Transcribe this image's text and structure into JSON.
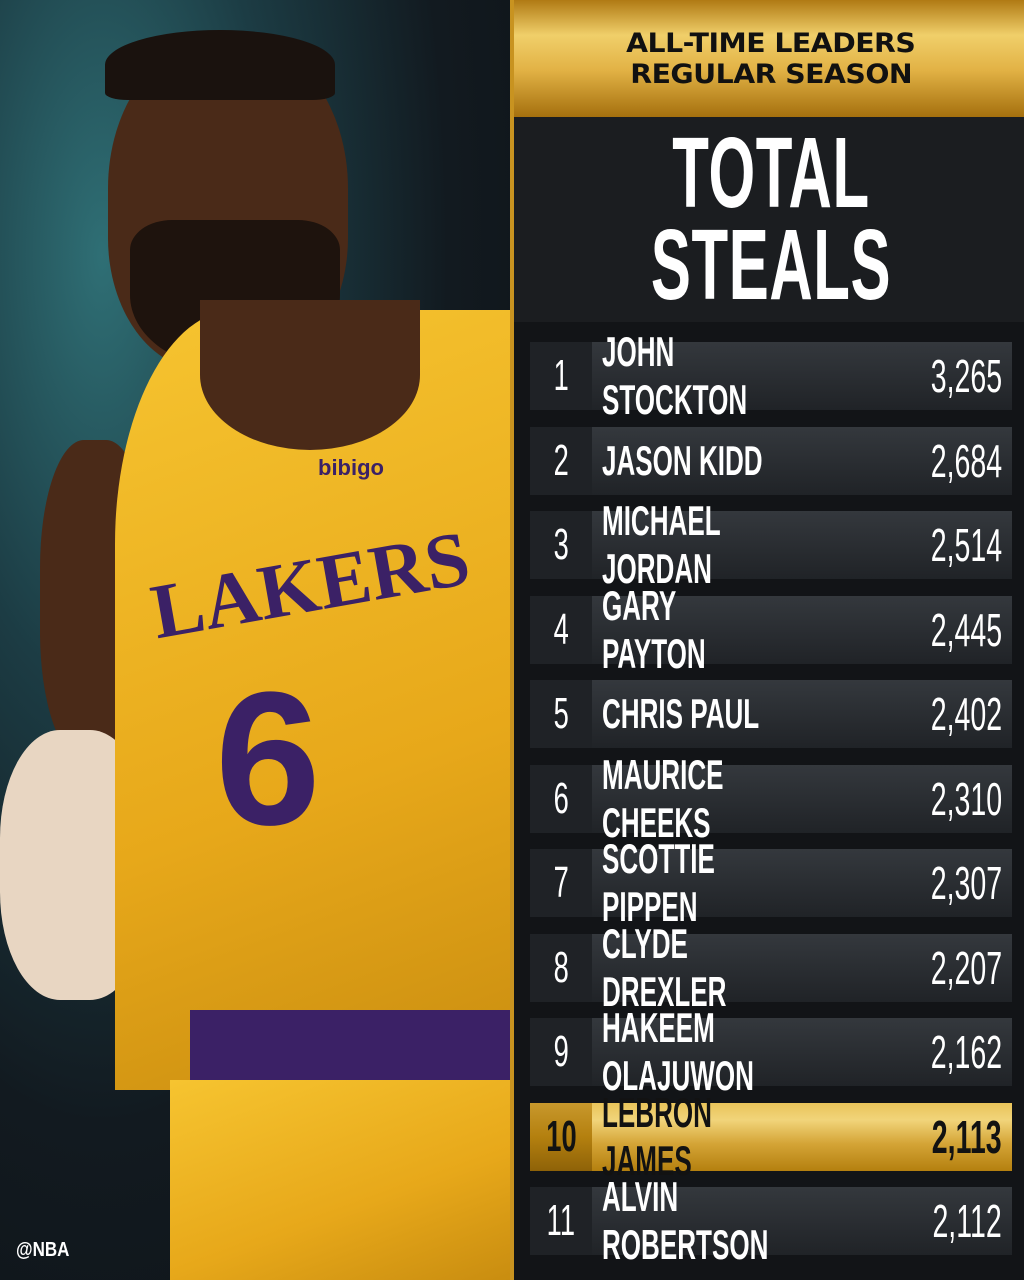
{
  "header": {
    "line1": "ALL-TIME LEADERS",
    "line2": "REGULAR SEASON"
  },
  "title": {
    "line1": "TOTAL",
    "line2": "STEALS"
  },
  "leaders": [
    {
      "rank": "1",
      "name": "JOHN STOCKTON",
      "steals": "3,265"
    },
    {
      "rank": "2",
      "name": "JASON KIDD",
      "steals": "2,684"
    },
    {
      "rank": "3",
      "name": "MICHAEL JORDAN",
      "steals": "2,514"
    },
    {
      "rank": "4",
      "name": "GARY PAYTON",
      "steals": "2,445"
    },
    {
      "rank": "5",
      "name": "CHRIS PAUL",
      "steals": "2,402"
    },
    {
      "rank": "6",
      "name": "MAURICE CHEEKS",
      "steals": "2,310"
    },
    {
      "rank": "7",
      "name": "SCOTTIE PIPPEN",
      "steals": "2,307"
    },
    {
      "rank": "8",
      "name": "CLYDE DREXLER",
      "steals": "2,207"
    },
    {
      "rank": "9",
      "name": "HAKEEM OLAJUWON",
      "steals": "2,162"
    },
    {
      "rank": "10",
      "name": "LEBRON JAMES",
      "steals": "2,113",
      "highlighted": true
    },
    {
      "rank": "11",
      "name": "ALVIN ROBERTSON",
      "steals": "2,112"
    }
  ],
  "photo": {
    "jersey_text": "LAKERS",
    "jersey_number": "6",
    "sponsor": "bibigo"
  },
  "watermark": "@NBA",
  "colors": {
    "gold": "#d4a436",
    "panel": "#121417",
    "row": "#2a2d31",
    "jersey_yellow": "#f2bd2a",
    "jersey_purple": "#3b2166"
  }
}
